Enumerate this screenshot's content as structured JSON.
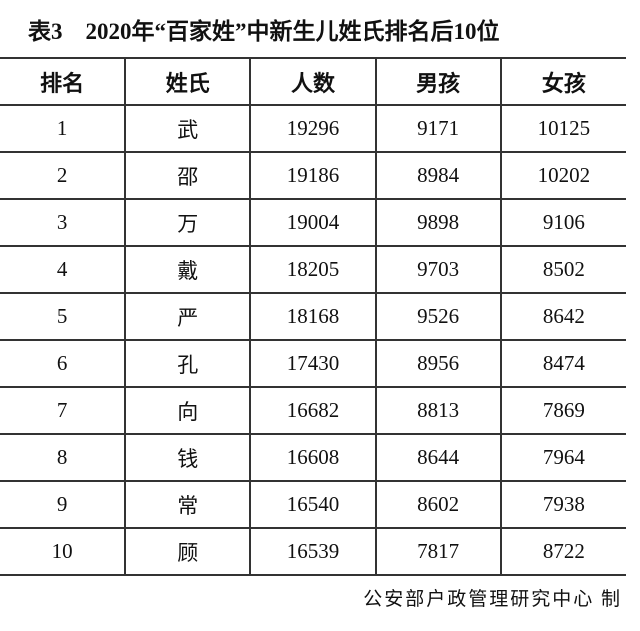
{
  "title": "表3    2020年“百家姓”中新生儿姓氏排名后10位",
  "headers": [
    "排名",
    "姓氏",
    "人数",
    "男孩",
    "女孩"
  ],
  "rows": [
    [
      "1",
      "武",
      "19296",
      "9171",
      "10125"
    ],
    [
      "2",
      "邵",
      "19186",
      "8984",
      "10202"
    ],
    [
      "3",
      "万",
      "19004",
      "9898",
      "9106"
    ],
    [
      "4",
      "戴",
      "18205",
      "9703",
      "8502"
    ],
    [
      "5",
      "严",
      "18168",
      "9526",
      "8642"
    ],
    [
      "6",
      "孔",
      "17430",
      "8956",
      "8474"
    ],
    [
      "7",
      "向",
      "16682",
      "8813",
      "7869"
    ],
    [
      "8",
      "钱",
      "16608",
      "8644",
      "7964"
    ],
    [
      "9",
      "常",
      "16540",
      "8602",
      "7938"
    ],
    [
      "10",
      "顾",
      "16539",
      "7817",
      "8722"
    ]
  ],
  "footer": "公安部户政管理研究中心 制"
}
